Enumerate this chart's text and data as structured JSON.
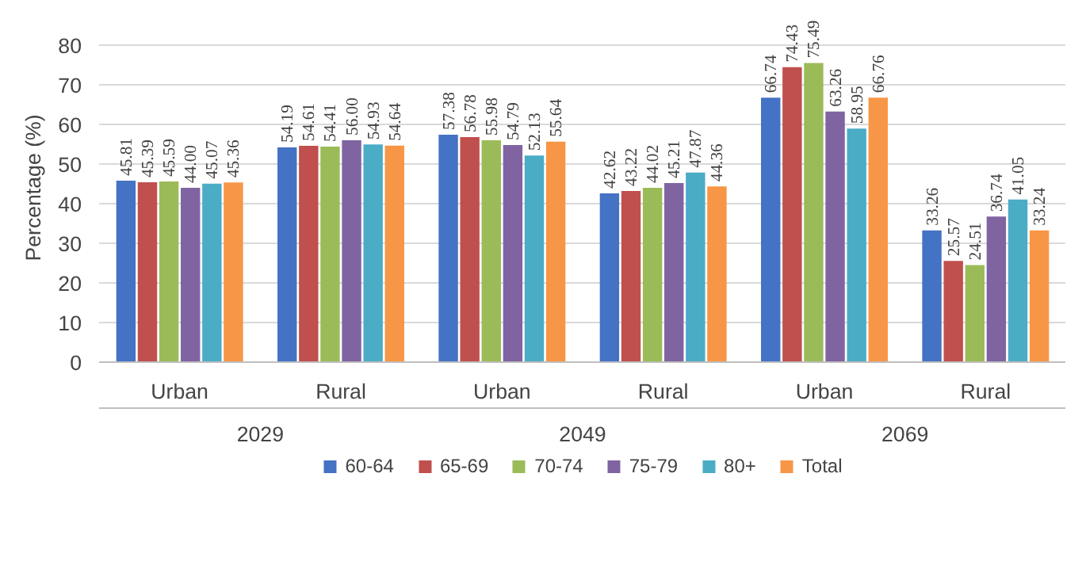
{
  "chart_data": {
    "type": "bar",
    "ylabel": "Percentage (%)",
    "categories": [
      "Urban",
      "Rural",
      "Urban",
      "Rural",
      "Urban",
      "Rural"
    ],
    "annotations": [
      "2029",
      "2049",
      "2069"
    ],
    "series": [
      {
        "name": "60-64",
        "color": "#4472c4",
        "values": [
          45.81,
          54.19,
          57.38,
          42.62,
          66.74,
          33.26
        ],
        "value_labels": [
          "45.81",
          "54.19",
          "57.38",
          "42.62",
          "66.74",
          "33.26"
        ]
      },
      {
        "name": "65-69",
        "color": "#c0504d",
        "values": [
          45.39,
          54.61,
          56.78,
          43.22,
          74.43,
          25.57
        ],
        "value_labels": [
          "45.39",
          "54.61",
          "56.78",
          "43.22",
          "74.43",
          "25.57"
        ]
      },
      {
        "name": "70-74",
        "color": "#9bbb59",
        "values": [
          45.59,
          54.41,
          55.98,
          44.02,
          75.49,
          24.51
        ],
        "value_labels": [
          "45.59",
          "54.41",
          "55.98",
          "44.02",
          "75.49",
          "24.51"
        ]
      },
      {
        "name": "75-79",
        "color": "#8064a2",
        "values": [
          44.0,
          56.0,
          54.79,
          45.21,
          63.26,
          36.74
        ],
        "value_labels": [
          "44.00",
          "56.00",
          "54.79",
          "45.21",
          "63.26",
          "36.74"
        ]
      },
      {
        "name": "80+",
        "color": "#4bacc6",
        "values": [
          45.07,
          54.93,
          52.13,
          47.87,
          58.95,
          41.05
        ],
        "value_labels": [
          "45.07",
          "54.93",
          "52.13",
          "47.87",
          "58.95",
          "41.05"
        ]
      },
      {
        "name": "Total",
        "color": "#f79646",
        "values": [
          45.36,
          54.64,
          55.64,
          44.36,
          66.76,
          33.24
        ],
        "value_labels": [
          "45.36",
          "54.64",
          "55.64",
          "44.36",
          "66.76",
          "33.24"
        ]
      }
    ],
    "ylim": [
      0,
      80
    ],
    "yticks": [
      0,
      10,
      20,
      30,
      40,
      50,
      60,
      70,
      80
    ],
    "grid": "y",
    "legend": "bottom"
  }
}
